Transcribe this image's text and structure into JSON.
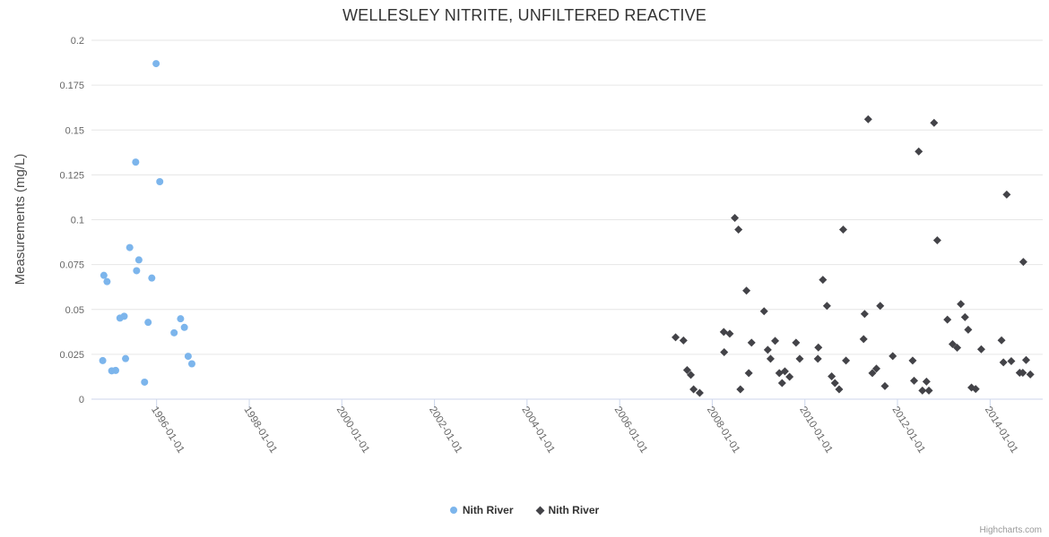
{
  "chart": {
    "title": "WELLESLEY NITRITE, UNFILTERED REACTIVE",
    "credits": "Highcharts.com"
  },
  "chart_data": {
    "type": "scatter",
    "title": "WELLESLEY NITRITE, UNFILTERED REACTIVE",
    "xlabel": "",
    "ylabel": "Measurements (mg/L)",
    "grid": "horizontal",
    "legend_position": "bottom-center",
    "x_axis": {
      "type": "datetime",
      "min": "1994-08-05",
      "max": "2015-02-20",
      "tick_labels": [
        "1996-01-01",
        "1998-01-01",
        "2000-01-01",
        "2002-01-01",
        "2004-01-01",
        "2006-01-01",
        "2008-01-01",
        "2010-01-01",
        "2012-01-01",
        "2014-01-01"
      ]
    },
    "y_axis": {
      "min": 0,
      "max": 0.2,
      "tick_interval": 0.025,
      "tick_labels": [
        "0",
        "0.025",
        "0.05",
        "0.075",
        "0.1",
        "0.125",
        "0.15",
        "0.175",
        "0.2"
      ]
    },
    "series": [
      {
        "name": "Nith River",
        "marker": "circle",
        "color": "#7cb5ec",
        "points": [
          [
            "1994-11-02",
            0.0215
          ],
          [
            "1994-11-11",
            0.069
          ],
          [
            "1994-12-06",
            0.0655
          ],
          [
            "1995-01-12",
            0.0158
          ],
          [
            "1995-02-12",
            0.016
          ],
          [
            "1995-03-18",
            0.0452
          ],
          [
            "1995-04-20",
            0.0462
          ],
          [
            "1995-05-01",
            0.0226
          ],
          [
            "1995-06-03",
            0.0845
          ],
          [
            "1995-07-20",
            0.1321
          ],
          [
            "1995-07-27",
            0.0716
          ],
          [
            "1995-08-14",
            0.0776
          ],
          [
            "1995-09-28",
            0.0095
          ],
          [
            "1995-10-26",
            0.0428
          ],
          [
            "1995-11-24",
            0.0675
          ],
          [
            "1995-12-28",
            0.187
          ],
          [
            "1996-01-26",
            0.1212
          ],
          [
            "1996-05-18",
            0.037
          ],
          [
            "1996-07-08",
            0.0448
          ],
          [
            "1996-08-07",
            0.04
          ],
          [
            "1996-09-06",
            0.0239
          ],
          [
            "1996-10-05",
            0.0197
          ]
        ]
      },
      {
        "name": "Nith River",
        "marker": "diamond",
        "color": "#434348",
        "points": [
          [
            "2007-03-18",
            0.0345
          ],
          [
            "2007-05-19",
            0.0327
          ],
          [
            "2007-06-17",
            0.0162
          ],
          [
            "2007-07-16",
            0.0135
          ],
          [
            "2007-08-07",
            0.0055
          ],
          [
            "2007-09-24",
            0.0035
          ],
          [
            "2008-04-01",
            0.0375
          ],
          [
            "2008-04-04",
            0.0262
          ],
          [
            "2008-05-18",
            0.0365
          ],
          [
            "2008-06-27",
            0.101
          ],
          [
            "2008-07-26",
            0.0945
          ],
          [
            "2008-08-10",
            0.0055
          ],
          [
            "2008-09-27",
            0.0605
          ],
          [
            "2008-10-15",
            0.0145
          ],
          [
            "2008-11-06",
            0.0315
          ],
          [
            "2009-02-13",
            0.049
          ],
          [
            "2009-03-14",
            0.0275
          ],
          [
            "2009-04-05",
            0.0225
          ],
          [
            "2009-05-11",
            0.0325
          ],
          [
            "2009-06-13",
            0.0145
          ],
          [
            "2009-07-05",
            0.009
          ],
          [
            "2009-07-27",
            0.0155
          ],
          [
            "2009-09-02",
            0.0125
          ],
          [
            "2009-10-23",
            0.0315
          ],
          [
            "2009-11-21",
            0.0225
          ],
          [
            "2010-04-13",
            0.0225
          ],
          [
            "2010-04-17",
            0.0288
          ],
          [
            "2010-05-23",
            0.0665
          ],
          [
            "2010-06-24",
            0.052
          ],
          [
            "2010-07-31",
            0.0127
          ],
          [
            "2010-08-26",
            0.009
          ],
          [
            "2010-09-28",
            0.0055
          ],
          [
            "2010-10-30",
            0.0945
          ],
          [
            "2010-11-21",
            0.0215
          ],
          [
            "2011-04-09",
            0.0335
          ],
          [
            "2011-04-17",
            0.0475
          ],
          [
            "2011-05-15",
            0.156
          ],
          [
            "2011-06-17",
            0.0145
          ],
          [
            "2011-07-19",
            0.017
          ],
          [
            "2011-08-18",
            0.052
          ],
          [
            "2011-09-24",
            0.0073
          ],
          [
            "2011-11-25",
            0.024
          ],
          [
            "2012-04-30",
            0.0215
          ],
          [
            "2012-05-11",
            0.0103
          ],
          [
            "2012-06-17",
            0.138
          ],
          [
            "2012-07-16",
            0.0048
          ],
          [
            "2012-08-17",
            0.0098
          ],
          [
            "2012-09-05",
            0.0048
          ],
          [
            "2012-10-16",
            0.154
          ],
          [
            "2012-11-10",
            0.0885
          ],
          [
            "2013-01-29",
            0.0443
          ],
          [
            "2013-03-11",
            0.0307
          ],
          [
            "2013-04-16",
            0.0287
          ],
          [
            "2013-05-15",
            0.053
          ],
          [
            "2013-06-17",
            0.0457
          ],
          [
            "2013-07-12",
            0.0387
          ],
          [
            "2013-08-07",
            0.0065
          ],
          [
            "2013-09-09",
            0.0057
          ],
          [
            "2013-10-23",
            0.0278
          ],
          [
            "2014-04-01",
            0.0328
          ],
          [
            "2014-04-16",
            0.0205
          ],
          [
            "2014-05-12",
            0.114
          ],
          [
            "2014-06-17",
            0.0212
          ],
          [
            "2014-08-22",
            0.0147
          ],
          [
            "2014-09-16",
            0.0147
          ],
          [
            "2014-09-20",
            0.0765
          ],
          [
            "2014-10-12",
            0.0218
          ],
          [
            "2014-11-14",
            0.0138
          ]
        ]
      }
    ],
    "colors": {
      "grid": "#e6e6e6",
      "axis_line": "#ccd6eb",
      "tick_label": "#666666",
      "title": "#333333",
      "legend_text": "#333333",
      "credits": "#999999"
    }
  }
}
